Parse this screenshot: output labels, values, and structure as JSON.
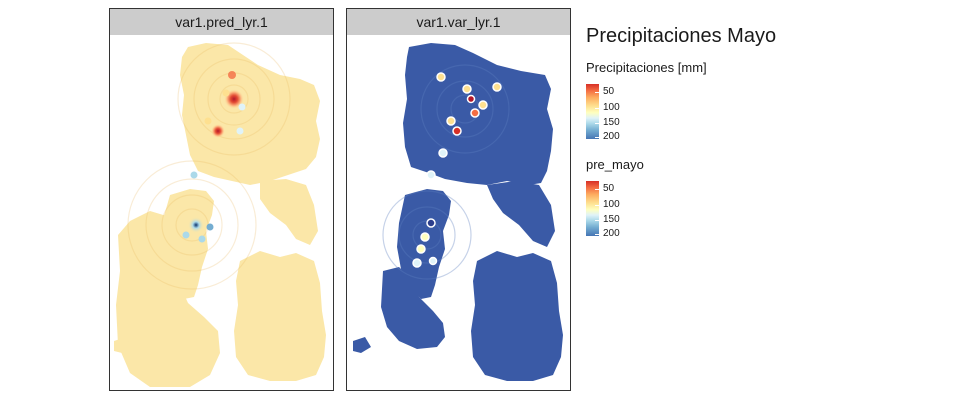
{
  "panels": [
    {
      "title": "var1.pred_lyr.1"
    },
    {
      "title": "var1.var_lyr.1"
    }
  ],
  "legend": {
    "title": "Precipitaciones Mayo",
    "scales": [
      {
        "title": "Precipitaciones [mm]",
        "ticks": [
          "50",
          "100",
          "150",
          "200"
        ]
      },
      {
        "title": "pre_mayo",
        "ticks": [
          "50",
          "100",
          "150",
          "200"
        ]
      }
    ]
  },
  "colors": {
    "prediction_fill": "#fbe7a8",
    "variance_fill": "#3a5aa6",
    "scale_low": "#d73027",
    "scale_mid": "#ffffbf",
    "scale_high": "#4575b4"
  }
}
